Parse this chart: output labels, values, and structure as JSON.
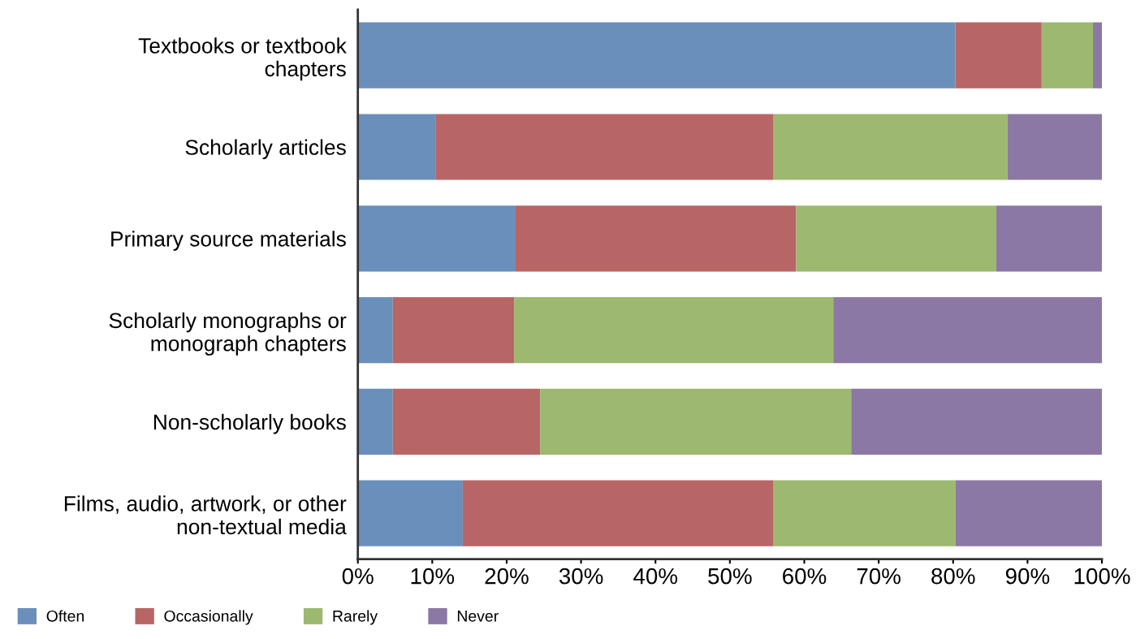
{
  "chart_data": {
    "type": "bar",
    "orientation": "horizontal",
    "stacked": true,
    "categories": [
      "Textbooks or textbook\nchapters",
      "Scholarly articles",
      "Primary source materials",
      "Scholarly monographs or\nmonograph chapters",
      "Non-scholarly books",
      "Films, audio, artwork, or other\nnon-textual media"
    ],
    "series": [
      {
        "name": "Often",
        "color": "#6a8fba",
        "values": [
          80.3,
          10.5,
          21.2,
          4.7,
          4.7,
          14.1
        ]
      },
      {
        "name": "Occasionally",
        "color": "#b86566",
        "values": [
          11.6,
          45.3,
          37.7,
          16.3,
          19.8,
          41.7
        ]
      },
      {
        "name": "Rarely",
        "color": "#9db86f",
        "values": [
          6.9,
          31.5,
          26.9,
          42.9,
          41.8,
          24.5
        ]
      },
      {
        "name": "Never",
        "color": "#8c78a5",
        "values": [
          1.2,
          12.7,
          14.2,
          36.1,
          33.7,
          19.7
        ]
      }
    ],
    "xlim": [
      0,
      100
    ],
    "xticks": [
      {
        "value": 0,
        "label": "0%"
      },
      {
        "value": 10,
        "label": "10%"
      },
      {
        "value": 20,
        "label": "20%"
      },
      {
        "value": 30,
        "label": "30%"
      },
      {
        "value": 40,
        "label": "40%"
      },
      {
        "value": 50,
        "label": "50%"
      },
      {
        "value": 60,
        "label": "60%"
      },
      {
        "value": 70,
        "label": "70%"
      },
      {
        "value": 80,
        "label": "80%"
      },
      {
        "value": 90,
        "label": "90%"
      },
      {
        "value": 100,
        "label": "100%"
      }
    ],
    "grid": false,
    "legend": "bottom left"
  }
}
